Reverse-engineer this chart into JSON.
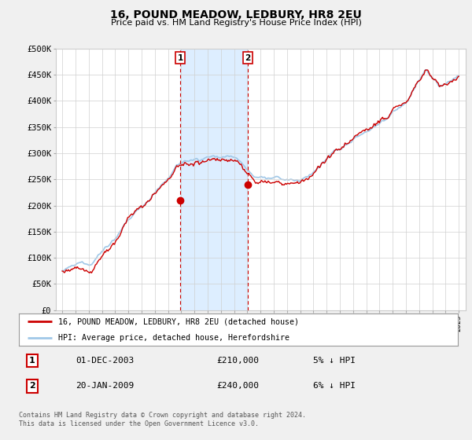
{
  "title": "16, POUND MEADOW, LEDBURY, HR8 2EU",
  "subtitle": "Price paid vs. HM Land Registry's House Price Index (HPI)",
  "ylabel_ticks": [
    "£0",
    "£50K",
    "£100K",
    "£150K",
    "£200K",
    "£250K",
    "£300K",
    "£350K",
    "£400K",
    "£450K",
    "£500K"
  ],
  "ytick_values": [
    0,
    50000,
    100000,
    150000,
    200000,
    250000,
    300000,
    350000,
    400000,
    450000,
    500000
  ],
  "ylim": [
    0,
    500000
  ],
  "xlim_start": 1994.5,
  "xlim_end": 2025.5,
  "xtick_years": [
    1995,
    1996,
    1997,
    1998,
    1999,
    2000,
    2001,
    2002,
    2003,
    2004,
    2005,
    2006,
    2007,
    2008,
    2009,
    2010,
    2011,
    2012,
    2013,
    2014,
    2015,
    2016,
    2017,
    2018,
    2019,
    2020,
    2021,
    2022,
    2023,
    2024,
    2025
  ],
  "hpi_color": "#a0c8e8",
  "price_color": "#cc0000",
  "shaded_color": "#ddeeff",
  "transaction1_x": 2003.92,
  "transaction1_y": 210000,
  "transaction2_x": 2009.05,
  "transaction2_y": 240000,
  "legend_line1": "16, POUND MEADOW, LEDBURY, HR8 2EU (detached house)",
  "legend_line2": "HPI: Average price, detached house, Herefordshire",
  "table_row1_num": "1",
  "table_row1_date": "01-DEC-2003",
  "table_row1_price": "£210,000",
  "table_row1_note": "5% ↓ HPI",
  "table_row2_num": "2",
  "table_row2_date": "20-JAN-2009",
  "table_row2_price": "£240,000",
  "table_row2_note": "6% ↓ HPI",
  "footer": "Contains HM Land Registry data © Crown copyright and database right 2024.\nThis data is licensed under the Open Government Licence v3.0.",
  "background_color": "#f0f0f0",
  "plot_bg_color": "#ffffff"
}
